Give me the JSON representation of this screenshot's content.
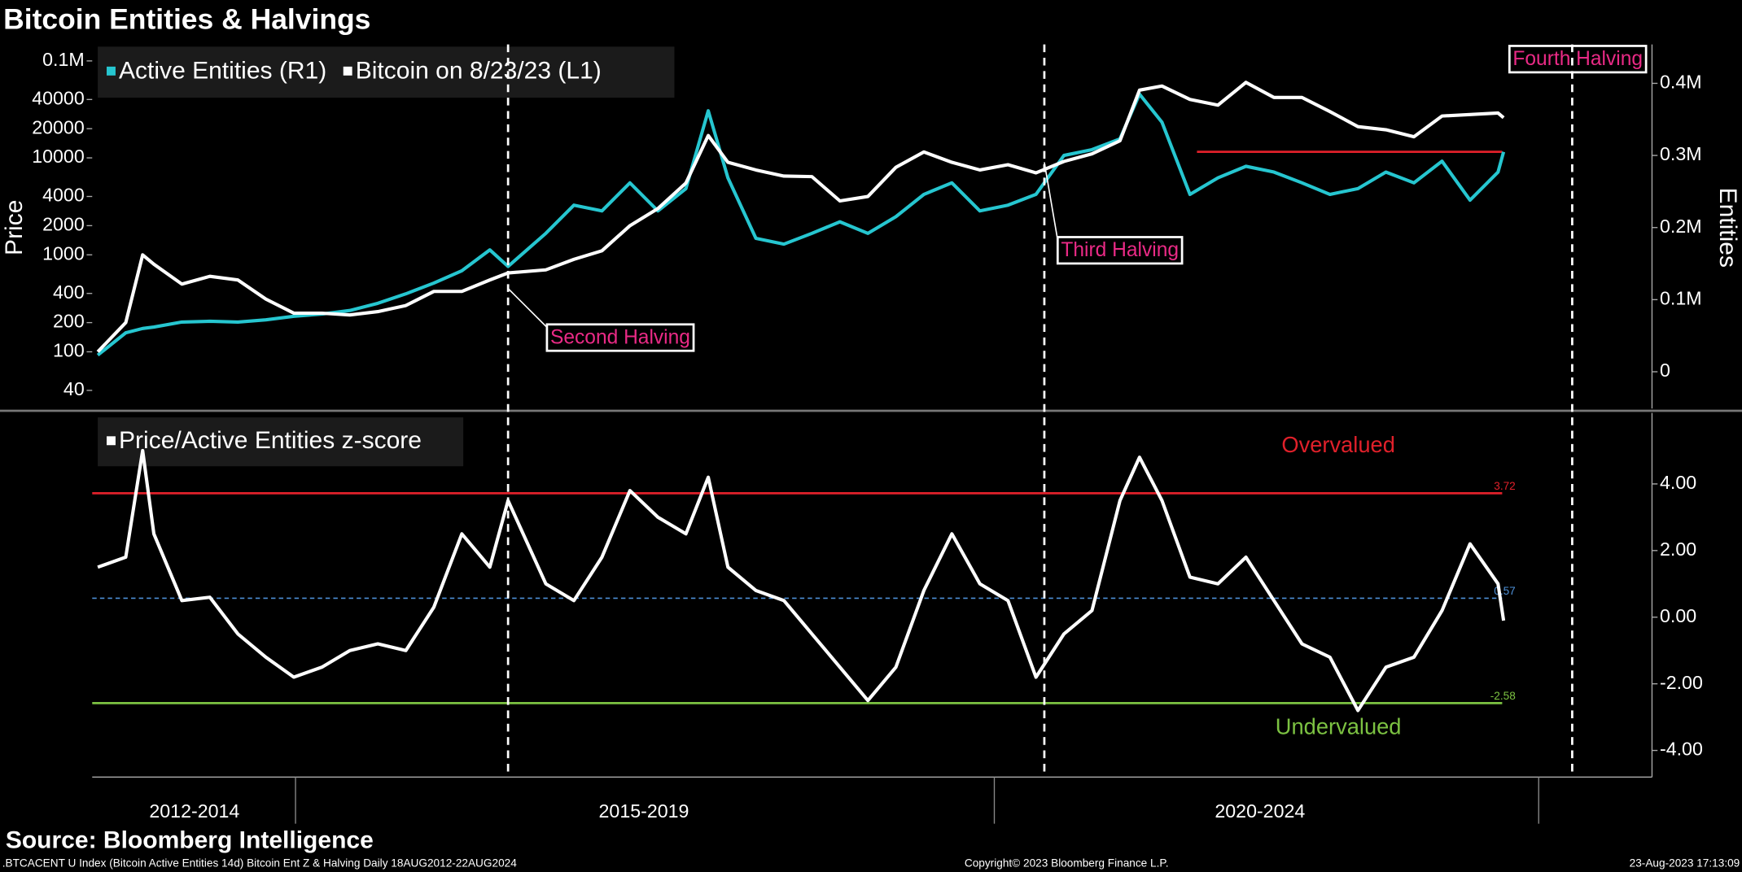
{
  "chart_data": [
    {
      "type": "line",
      "title": "Bitcoin Entities & Halvings",
      "ylabel": "Price",
      "y2label": "Entities",
      "log_y": true,
      "x": [
        2013.6,
        2013.8,
        2013.92,
        2014.0,
        2014.2,
        2014.4,
        2014.6,
        2014.8,
        2015.0,
        2015.2,
        2015.4,
        2015.6,
        2015.8,
        2016.0,
        2016.2,
        2016.4,
        2016.53,
        2016.8,
        2017.0,
        2017.2,
        2017.4,
        2017.6,
        2017.8,
        2017.96,
        2018.1,
        2018.3,
        2018.5,
        2018.7,
        2018.9,
        2019.1,
        2019.3,
        2019.5,
        2019.7,
        2019.9,
        2020.1,
        2020.3,
        2020.5,
        2020.7,
        2020.9,
        2021.04,
        2021.2,
        2021.4,
        2021.6,
        2021.8,
        2022.0,
        2022.2,
        2022.4,
        2022.6,
        2022.8,
        2023.0,
        2023.2,
        2023.4,
        2023.6,
        2023.64
      ],
      "xlim": [
        2013.56,
        2024.7
      ],
      "ylim": [
        26,
        148000
      ],
      "yticks": [
        40,
        100,
        200,
        400,
        1000,
        2000,
        4000,
        10000,
        20000,
        40000,
        {
          "value": 100000,
          "label": "0.1M"
        }
      ],
      "y2lim": [
        -51000,
        454000
      ],
      "y2ticks": [
        0,
        {
          "value": 100000,
          "label": "0.1M"
        },
        {
          "value": 200000,
          "label": "0.2M"
        },
        {
          "value": 300000,
          "label": "0.3M"
        },
        {
          "value": 400000,
          "label": "0.4M"
        }
      ],
      "series": [
        {
          "name": "Active Entities (R1)",
          "color": "#26c6d0",
          "axis": "y2",
          "values": [
            23000,
            54000,
            60000,
            62000,
            69000,
            70000,
            69000,
            72000,
            77000,
            80000,
            85000,
            95000,
            108000,
            123000,
            140000,
            169000,
            146000,
            192000,
            231000,
            223000,
            262000,
            223000,
            254000,
            362000,
            269000,
            185000,
            177000,
            192000,
            208000,
            192000,
            215000,
            246000,
            262000,
            223000,
            231000,
            246000,
            300000,
            308000,
            323000,
            385000,
            346000,
            246000,
            269000,
            285000,
            277000,
            262000,
            246000,
            254000,
            277000,
            262000,
            292000,
            238000,
            277000,
            305000
          ]
        },
        {
          "name": "Bitcoin on 8/23/23 (L1)",
          "color": "#ffffff",
          "values": [
            100,
            200,
            1000,
            800,
            500,
            600,
            550,
            350,
            250,
            250,
            240,
            260,
            300,
            420,
            420,
            550,
            650,
            700,
            900,
            1100,
            2000,
            3000,
            5500,
            17000,
            9000,
            7500,
            6500,
            6400,
            3600,
            4000,
            8000,
            11500,
            9000,
            7500,
            8500,
            7000,
            9200,
            11000,
            15000,
            50000,
            55000,
            40000,
            35000,
            60000,
            42000,
            42000,
            30000,
            21000,
            19500,
            16500,
            27000,
            28000,
            29000,
            26000
          ]
        }
      ],
      "hlines": [
        {
          "value": 305000,
          "axis": "y2",
          "x": [
            2021.45,
            2023.63
          ],
          "color": "#e0202a"
        }
      ],
      "annotations": [
        {
          "text": "Second Halving",
          "x": 2016.53,
          "y": 450
        },
        {
          "text": "Third Halving",
          "x": 2020.36,
          "y": 9000
        },
        {
          "text": "Fourth Halving",
          "x": 2024.13
        }
      ]
    },
    {
      "type": "line",
      "x": [
        2013.6,
        2013.8,
        2013.92,
        2014.0,
        2014.2,
        2014.4,
        2014.6,
        2014.8,
        2015.0,
        2015.2,
        2015.4,
        2015.6,
        2015.8,
        2016.0,
        2016.2,
        2016.4,
        2016.53,
        2016.8,
        2017.0,
        2017.2,
        2017.4,
        2017.6,
        2017.8,
        2017.96,
        2018.1,
        2018.3,
        2018.5,
        2018.7,
        2018.9,
        2019.1,
        2019.3,
        2019.5,
        2019.7,
        2019.9,
        2020.1,
        2020.3,
        2020.5,
        2020.7,
        2020.9,
        2021.04,
        2021.2,
        2021.4,
        2021.6,
        2021.8,
        2022.0,
        2022.2,
        2022.4,
        2022.6,
        2022.8,
        2023.0,
        2023.2,
        2023.4,
        2023.6,
        2023.64
      ],
      "xlim": [
        2013.56,
        2024.7
      ],
      "xticks": [
        {
          "value": 2014.29,
          "label": "2012-2014"
        },
        {
          "value": 2017.5,
          "label": "2015-2019"
        },
        {
          "value": 2021.9,
          "label": "2020-2024"
        }
      ],
      "ylim": [
        -4.8,
        6.13
      ],
      "yticks": [
        {
          "value": 4,
          "label": "4.00"
        },
        {
          "value": 2,
          "label": "2.00"
        },
        {
          "value": 0,
          "label": "0.00"
        },
        {
          "value": -2,
          "label": "-2.00"
        },
        {
          "value": -4,
          "label": "-4.00"
        }
      ],
      "series": [
        {
          "name": "Price/Active Entities z-score",
          "color": "#ffffff",
          "values": [
            1.5,
            1.8,
            5.0,
            2.5,
            0.5,
            0.6,
            -0.5,
            -1.2,
            -1.8,
            -1.5,
            -1.0,
            -0.8,
            -1.0,
            0.3,
            2.5,
            1.5,
            3.5,
            1.0,
            0.5,
            1.8,
            3.8,
            3.0,
            2.5,
            4.2,
            1.5,
            0.8,
            0.5,
            -0.5,
            -1.5,
            -2.5,
            -1.5,
            0.8,
            2.5,
            1.0,
            0.5,
            -1.8,
            -0.5,
            0.2,
            3.5,
            4.8,
            3.5,
            1.2,
            1.0,
            1.8,
            0.5,
            -0.8,
            -1.2,
            -2.8,
            -1.5,
            -1.2,
            0.2,
            2.2,
            1.0,
            -0.1
          ]
        }
      ],
      "hlines": [
        {
          "value": 3.72,
          "x": [
            2013.56,
            2023.63
          ],
          "color": "#e0202a"
        },
        {
          "value": 0.57,
          "x": [
            2013.56,
            2023.63
          ],
          "color": "#4d8fd6",
          "dashed": true
        },
        {
          "value": -2.58,
          "x": [
            2013.56,
            2023.63
          ],
          "color": "#7cc242"
        }
      ],
      "annotations": [
        {
          "text": "Overvalued",
          "x": 2022.46,
          "y": 5.13,
          "color": "#e0202a"
        },
        {
          "text": "Undervalued",
          "x": 2022.46,
          "y": -3.33,
          "color": "#7cc242"
        }
      ]
    }
  ],
  "footer": {
    "source": "Source: Bloomberg Intelligence",
    "index_line": ".BTCACENT U Index (Bitcoin Active Entities 14d) Bitcoin Ent Z & Halving  Daily 18AUG2012-22AUG2024",
    "copyright": "Copyright© 2023 Bloomberg Finance L.P.",
    "timestamp": "23-Aug-2023 17:13:09"
  }
}
